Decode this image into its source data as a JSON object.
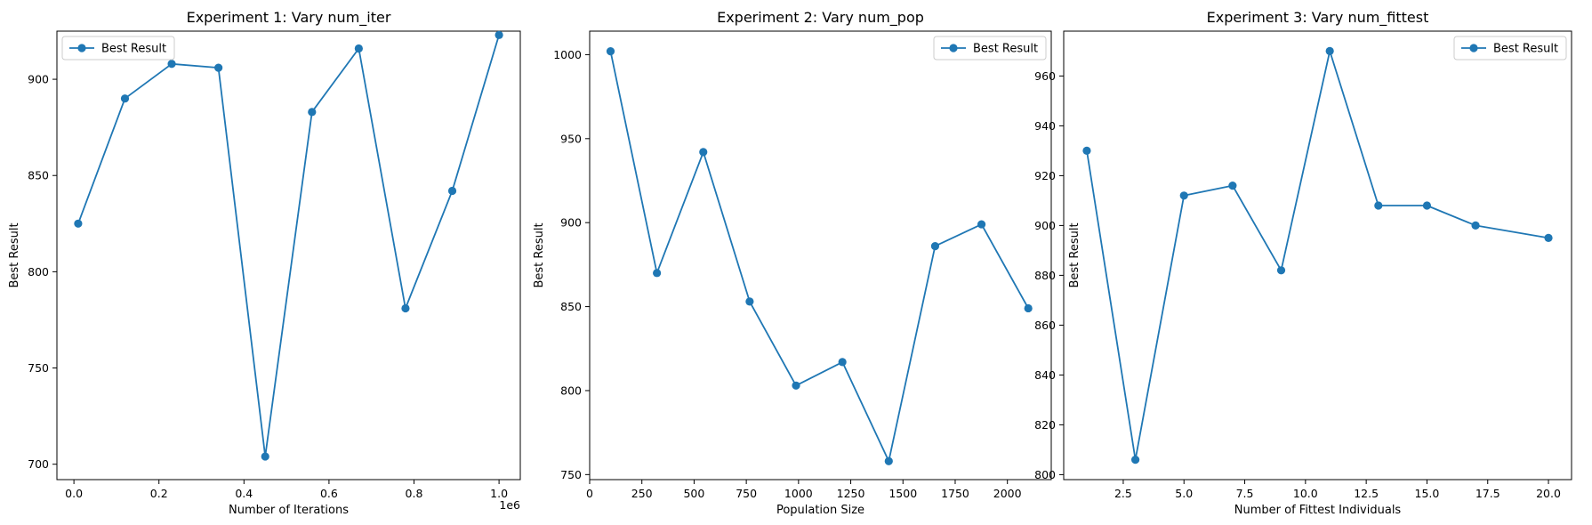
{
  "colors": {
    "series": "#1f77b4",
    "axis": "#000000",
    "legend_border": "#cccccc"
  },
  "chart_data": [
    {
      "type": "line",
      "title": "Experiment 1: Vary num_iter",
      "xlabel": "Number of Iterations",
      "ylabel": "Best Result",
      "x_offset_label": "1e6",
      "legend_position": "top-left",
      "series": [
        {
          "name": "Best Result",
          "x": [
            10000,
            120000,
            230000,
            340000,
            450000,
            560000,
            670000,
            780000,
            890000,
            1000000
          ],
          "y": [
            825,
            890,
            908,
            906,
            704,
            883,
            916,
            781,
            842,
            923
          ]
        }
      ],
      "xlim": [
        -40000,
        1050000
      ],
      "ylim": [
        692,
        925
      ],
      "xticks": [
        {
          "v": 0,
          "label": "0.0"
        },
        {
          "v": 200000,
          "label": "0.2"
        },
        {
          "v": 400000,
          "label": "0.4"
        },
        {
          "v": 600000,
          "label": "0.6"
        },
        {
          "v": 800000,
          "label": "0.8"
        },
        {
          "v": 1000000,
          "label": "1.0"
        }
      ],
      "yticks": [
        {
          "v": 700,
          "label": "700"
        },
        {
          "v": 750,
          "label": "750"
        },
        {
          "v": 800,
          "label": "800"
        },
        {
          "v": 850,
          "label": "850"
        },
        {
          "v": 900,
          "label": "900"
        }
      ]
    },
    {
      "type": "line",
      "title": "Experiment 2: Vary num_pop",
      "xlabel": "Population Size",
      "ylabel": "Best Result",
      "legend_position": "top-right",
      "series": [
        {
          "name": "Best Result",
          "x": [
            100,
            322,
            544,
            766,
            988,
            1210,
            1432,
            1654,
            1876,
            2100
          ],
          "y": [
            1002,
            870,
            942,
            853,
            803,
            817,
            758,
            886,
            899,
            849
          ]
        }
      ],
      "xlim": [
        0,
        2210
      ],
      "ylim": [
        747,
        1014
      ],
      "xticks": [
        {
          "v": 0,
          "label": "0"
        },
        {
          "v": 250,
          "label": "250"
        },
        {
          "v": 500,
          "label": "500"
        },
        {
          "v": 750,
          "label": "750"
        },
        {
          "v": 1000,
          "label": "1000"
        },
        {
          "v": 1250,
          "label": "1250"
        },
        {
          "v": 1500,
          "label": "1500"
        },
        {
          "v": 1750,
          "label": "1750"
        },
        {
          "v": 2000,
          "label": "2000"
        }
      ],
      "yticks": [
        {
          "v": 750,
          "label": "750"
        },
        {
          "v": 800,
          "label": "800"
        },
        {
          "v": 850,
          "label": "850"
        },
        {
          "v": 900,
          "label": "900"
        },
        {
          "v": 950,
          "label": "950"
        },
        {
          "v": 1000,
          "label": "1000"
        }
      ]
    },
    {
      "type": "line",
      "title": "Experiment 3: Vary num_fittest",
      "xlabel": "Number of Fittest Individuals",
      "ylabel": "Best Result",
      "legend_position": "top-right",
      "series": [
        {
          "name": "Best Result",
          "x": [
            1,
            3,
            5,
            7,
            9,
            11,
            13,
            15,
            17,
            20
          ],
          "y": [
            930,
            806,
            912,
            916,
            882,
            970,
            908,
            908,
            900,
            895
          ]
        }
      ],
      "xlim": [
        0.05,
        20.95
      ],
      "ylim": [
        798,
        978
      ],
      "xticks": [
        {
          "v": 2.5,
          "label": "2.5"
        },
        {
          "v": 5,
          "label": "5.0"
        },
        {
          "v": 7.5,
          "label": "7.5"
        },
        {
          "v": 10,
          "label": "10.0"
        },
        {
          "v": 12.5,
          "label": "12.5"
        },
        {
          "v": 15,
          "label": "15.0"
        },
        {
          "v": 17.5,
          "label": "17.5"
        },
        {
          "v": 20,
          "label": "20.0"
        }
      ],
      "yticks": [
        {
          "v": 800,
          "label": "800"
        },
        {
          "v": 820,
          "label": "820"
        },
        {
          "v": 840,
          "label": "840"
        },
        {
          "v": 860,
          "label": "860"
        },
        {
          "v": 880,
          "label": "880"
        },
        {
          "v": 900,
          "label": "900"
        },
        {
          "v": 920,
          "label": "920"
        },
        {
          "v": 940,
          "label": "940"
        },
        {
          "v": 960,
          "label": "960"
        }
      ]
    }
  ]
}
